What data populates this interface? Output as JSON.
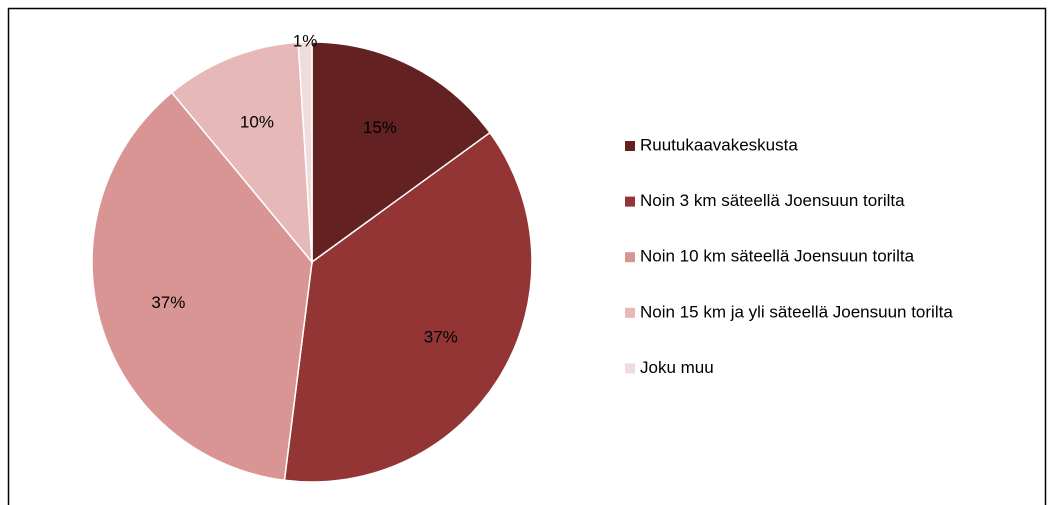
{
  "chart_data": {
    "type": "pie",
    "categories": [
      "Ruutukaavakeskusta",
      "Noin 3 km säteellä Joensuun torilta",
      "Noin 10 km säteellä Joensuun torilta",
      "Noin 15 km ja yli säteellä Joensuun torilta",
      "Joku muu"
    ],
    "values": [
      15,
      37,
      37,
      10,
      1
    ],
    "value_labels": [
      "15%",
      "37%",
      "37%",
      "10%",
      "1%"
    ],
    "colors": [
      "#632121",
      "#943535",
      "#d99593",
      "#e6b9b8",
      "#f2dcdb"
    ],
    "legend": "right"
  }
}
